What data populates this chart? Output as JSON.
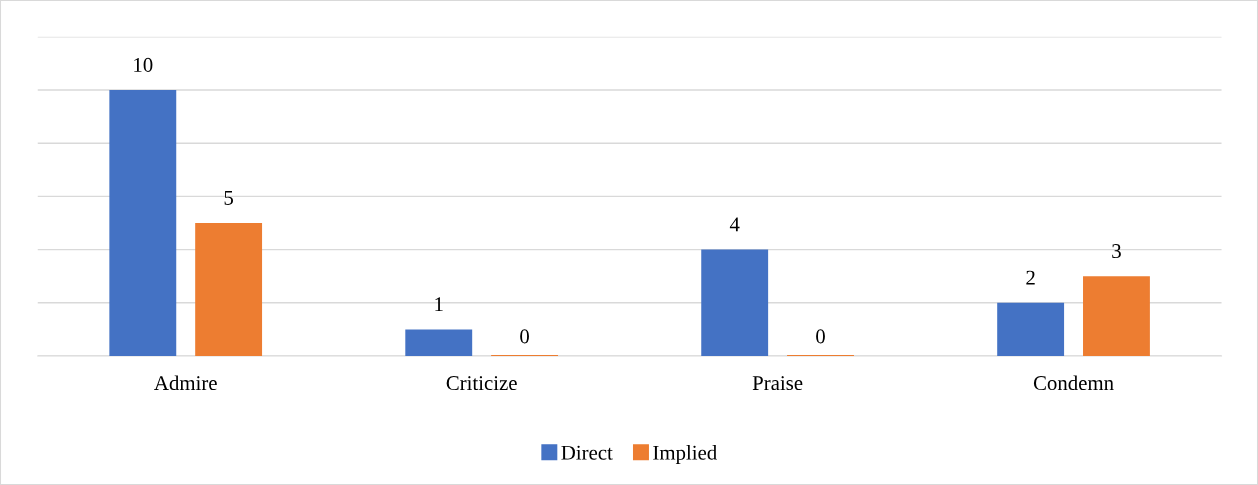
{
  "chart_data": {
    "type": "bar",
    "categories": [
      "Admire",
      "Criticize",
      "Praise",
      "Condemn"
    ],
    "series": [
      {
        "name": "Direct",
        "color": "#4472c4",
        "values": [
          10,
          1,
          4,
          2
        ]
      },
      {
        "name": "Implied",
        "color": "#ed7d31",
        "values": [
          5,
          0,
          0,
          3
        ]
      }
    ],
    "ylim": [
      0,
      12
    ],
    "yticks": [
      {
        "value": 0,
        "label": null
      },
      {
        "value": 2,
        "label": null
      },
      {
        "value": 4,
        "label": null
      },
      {
        "value": 6,
        "label": null
      },
      {
        "value": 8,
        "label": null
      },
      {
        "value": 10,
        "label": null
      },
      {
        "value": 12,
        "label": null
      }
    ],
    "tick_labels": "x",
    "grid": "y",
    "data_labels": true,
    "legend": "bottom"
  }
}
